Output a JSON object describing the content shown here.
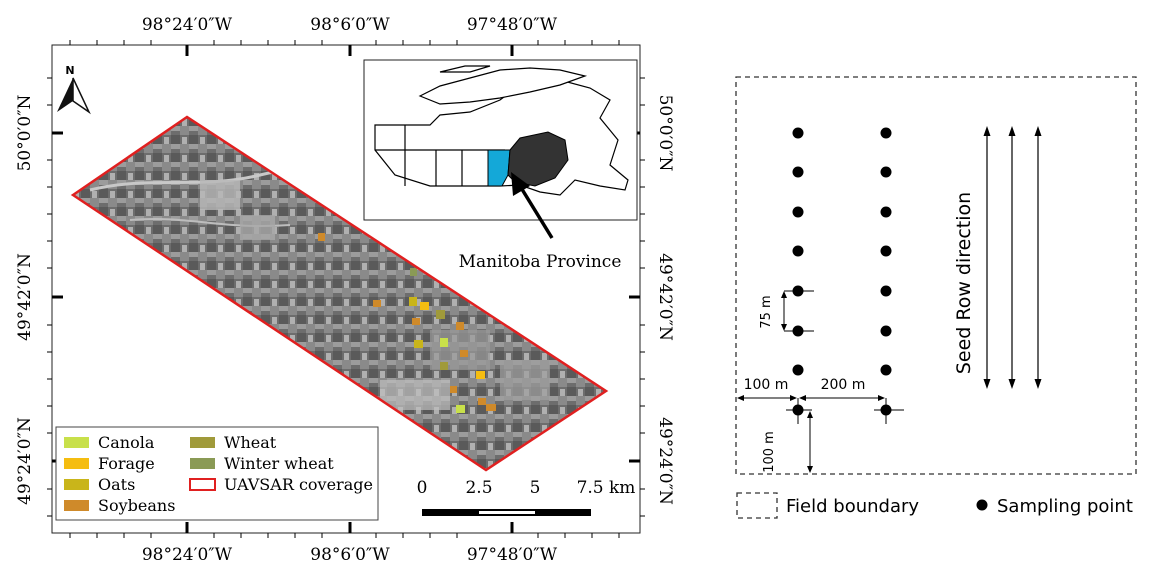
{
  "map": {
    "lon_labels": [
      "98°24′0″W",
      "98°6′0″W",
      "97°48′0″W"
    ],
    "lat_labels": [
      "50°0′0″N",
      "49°42′0″N",
      "49°24′0″N"
    ],
    "north_label": "N",
    "legend": [
      {
        "label": "Canola",
        "color": "#c8e04a"
      },
      {
        "label": "Forage",
        "color": "#f5bd10"
      },
      {
        "label": "Oats",
        "color": "#c9b51a"
      },
      {
        "label": "Soybeans",
        "color": "#cf8a2a"
      },
      {
        "label": "Wheat",
        "color": "#a09a3a"
      },
      {
        "label": "Winter wheat",
        "color": "#8a9a55"
      },
      {
        "label": "UAVSAR coverage",
        "color": "#e02020"
      }
    ],
    "scalebar": {
      "labels": [
        "0",
        "2.5",
        "5",
        "7.5 km"
      ]
    },
    "inset_label": "Manitoba Province",
    "inset_highlight_color": "#14a8d8"
  },
  "schematic": {
    "dim_75": "75 m",
    "dim_100_h": "100 m",
    "dim_200": "200 m",
    "dim_100_v": "100 m",
    "seed_row_label": "Seed Row direction",
    "legend_boundary": "Field boundary",
    "legend_point": "Sampling point"
  }
}
